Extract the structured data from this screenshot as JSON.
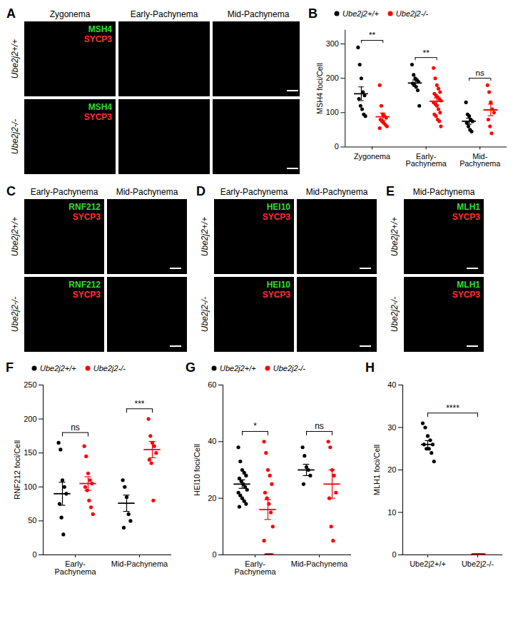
{
  "image_panels": [
    {
      "panel": "A",
      "columns": [
        "Zygonema",
        "Early-Pachynema",
        "Mid-Pachynema"
      ],
      "rows": [
        "Ube2j2+/+",
        "Ube2j2-/-"
      ],
      "channels": [
        {
          "name": "MSH4",
          "color": "#33dd33"
        },
        {
          "name": "SYCP3",
          "color": "#ff3030"
        }
      ]
    },
    {
      "panel": "C",
      "columns": [
        "Early-Pachynema",
        "Mid-Pachynema"
      ],
      "rows": [
        "Ube2j2+/+",
        "Ube2j2-/-"
      ],
      "channels": [
        {
          "name": "RNF212",
          "color": "#33dd33"
        },
        {
          "name": "SYCP3",
          "color": "#ff3030"
        }
      ]
    },
    {
      "panel": "D",
      "columns": [
        "Early-Pachynema",
        "Mid-Pachynema"
      ],
      "rows": [
        "Ube2j2+/+",
        "Ube2j2-/-"
      ],
      "channels": [
        {
          "name": "HEI10",
          "color": "#33dd33"
        },
        {
          "name": "SYCP3",
          "color": "#ff3030"
        }
      ]
    },
    {
      "panel": "E",
      "columns": [
        "Mid-Pachynema"
      ],
      "rows": [
        "Ube2j2+/+",
        "Ube2j2-/-"
      ],
      "channels": [
        {
          "name": "MLH1",
          "color": "#33dd33"
        },
        {
          "name": "SYCP3",
          "color": "#ff3030"
        }
      ]
    }
  ],
  "chart_data": [
    {
      "panel": "B",
      "type": "scatter",
      "y_label": "MSH4 foci/Cell",
      "legend": "top",
      "categories": [
        "Zygonema",
        "Early-Pachynema",
        "Mid-Pachynema"
      ],
      "ylim": [
        0,
        340
      ],
      "yticks": [
        0,
        100,
        200,
        300
      ],
      "significance": [
        "**",
        "**",
        "ns"
      ],
      "series": [
        {
          "name": "Ube2j2+/+",
          "color": "#000000",
          "values": [
            [
              290,
              240,
              200,
              160,
              150,
              140,
              120,
              110,
              95,
              90
            ],
            [
              240,
              210,
              200,
              195,
              190,
              185,
              180,
              175,
              165,
              120
            ],
            [
              130,
              95,
              90,
              80,
              75,
              70,
              60,
              50,
              45
            ]
          ],
          "means": [
            155,
            186,
            75
          ],
          "sems": [
            20,
            9,
            9
          ]
        },
        {
          "name": "Ube2j2-/-",
          "color": "#ff0000",
          "values": [
            [
              180,
              120,
              95,
              90,
              85,
              80,
              75,
              70,
              65,
              60,
              55
            ],
            [
              230,
              200,
              180,
              170,
              160,
              155,
              150,
              145,
              140,
              135,
              130,
              125,
              120,
              110,
              100,
              95,
              90,
              80,
              75,
              60
            ],
            [
              180,
              160,
              130,
              110,
              100,
              80,
              60,
              40
            ]
          ],
          "means": [
            88,
            133,
            108
          ],
          "sems": [
            11,
            10,
            17
          ]
        }
      ]
    },
    {
      "panel": "F",
      "type": "scatter",
      "y_label": "RNF212 foci/Cell",
      "legend": "top",
      "categories": [
        "Early-Pachynema",
        "Mid-Pachynema"
      ],
      "ylim": [
        0,
        250
      ],
      "yticks": [
        0,
        50,
        100,
        150,
        200,
        250
      ],
      "significance": [
        "ns",
        "***"
      ],
      "series": [
        {
          "name": "Ube2j2+/+",
          "color": "#000000",
          "values": [
            [
              165,
              155,
              110,
              100,
              90,
              75,
              55,
              30
            ],
            [
              110,
              100,
              85,
              60,
              50,
              40
            ]
          ],
          "means": [
            90,
            76
          ],
          "sems": [
            17,
            12
          ]
        },
        {
          "name": "Ube2j2-/-",
          "color": "#ff0000",
          "values": [
            [
              160,
              145,
              120,
              110,
              105,
              100,
              95,
              80,
              70,
              60
            ],
            [
              200,
              175,
              165,
              160,
              150,
              140,
              135,
              80
            ]
          ],
          "means": [
            105,
            155
          ],
          "sems": [
            10,
            12
          ]
        }
      ]
    },
    {
      "panel": "G",
      "type": "scatter",
      "y_label": "HEI10 foci/Cell",
      "legend": "top",
      "categories": [
        "Early-Pachynema",
        "Mid-Pachynema"
      ],
      "ylim": [
        0,
        60
      ],
      "yticks": [
        0,
        20,
        40,
        60
      ],
      "significance": [
        "*",
        "ns"
      ],
      "series": [
        {
          "name": "Ube2j2+/+",
          "color": "#000000",
          "values": [
            [
              38,
              33,
              30,
              29,
              28,
              27,
              26,
              25,
              24,
              23,
              22,
              21,
              20,
              19,
              18,
              17
            ],
            [
              38,
              35,
              31,
              30,
              28,
              25
            ]
          ],
          "means": [
            25,
            30
          ],
          "sems": [
            1.5,
            2
          ]
        },
        {
          "name": "Ube2j2-/-",
          "color": "#ff0000",
          "values": [
            [
              40,
              36,
              30,
              28,
              25,
              22,
              20,
              18,
              15,
              10,
              5,
              0,
              0,
              0,
              0
            ],
            [
              40,
              38,
              30,
              28,
              22,
              20,
              10,
              5
            ]
          ],
          "means": [
            16,
            25
          ],
          "sems": [
            3.5,
            5
          ]
        }
      ]
    },
    {
      "panel": "H",
      "type": "scatter",
      "y_label": "MLH1 foci/Cell",
      "categories": [
        "Ube2j2+/+",
        "Ube2j2-/-"
      ],
      "ylim": [
        0,
        40
      ],
      "yticks": [
        0,
        10,
        20,
        30,
        40
      ],
      "significance": [
        "****"
      ],
      "colors": [
        "#000000",
        "#ff0000"
      ],
      "values": [
        [
          31,
          30,
          28,
          27,
          26,
          26,
          25,
          25,
          24,
          22
        ],
        [
          0,
          0,
          0,
          0,
          0,
          0,
          0,
          0,
          0,
          0
        ]
      ],
      "means": [
        26,
        0
      ],
      "sems": [
        0.9,
        0
      ]
    }
  ]
}
